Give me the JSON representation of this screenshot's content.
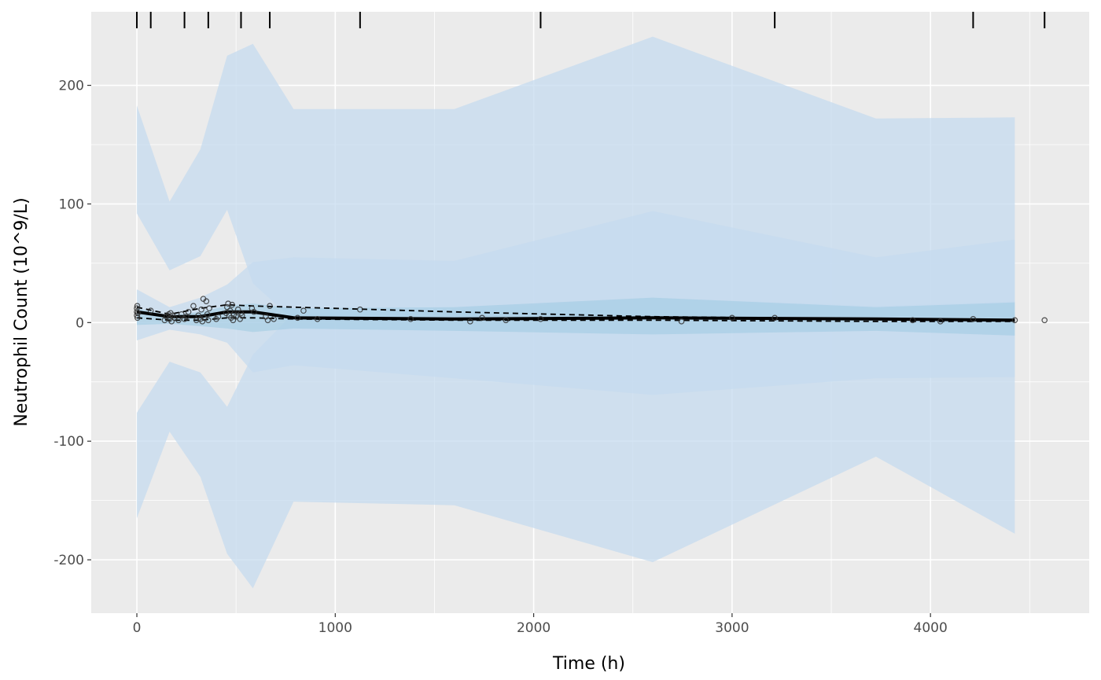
{
  "chart_data": {
    "type": "line",
    "title": "",
    "xlabel": "Time (h)",
    "ylabel": "Neutrophil Count (10^9/L)",
    "xlim": [
      -230,
      4800
    ],
    "ylim": [
      -245,
      262
    ],
    "x_ticks": [
      0,
      1000,
      2000,
      3000,
      4000
    ],
    "x_tick_labels": [
      "0",
      "1000",
      "2000",
      "3000",
      "4000"
    ],
    "y_ticks": [
      -200,
      -100,
      0,
      100,
      200
    ],
    "y_tick_labels": [
      "-200",
      "-100",
      "0",
      "100",
      "200"
    ],
    "grid": true,
    "colors": {
      "panel_background": "#ebebeb",
      "grid": "#ffffff",
      "outer_band": "#c6dbef",
      "inner_band": "#9ecae1",
      "lines": "#000000",
      "points": "#333333"
    },
    "bin_edges_rug": [
      0,
      70,
      240,
      360,
      525,
      670,
      1125,
      2035,
      3215,
      4215,
      4575
    ],
    "bands": [
      {
        "name": "outer_upper",
        "x": [
          0,
          165,
          320,
          455,
          585,
          790,
          1600,
          2600,
          3725,
          4425
        ],
        "lower": [
          92,
          44,
          56,
          95,
          33,
          2,
          2,
          4,
          3,
          3
        ],
        "upper": [
          183,
          102,
          146,
          225,
          235,
          180,
          180,
          241,
          172,
          173
        ]
      },
      {
        "name": "outer_median",
        "x": [
          0,
          165,
          320,
          455,
          585,
          790,
          1600,
          2600,
          3725,
          4425
        ],
        "lower": [
          -15,
          -6,
          -10,
          -17,
          -42,
          -36,
          -47,
          -61,
          -47,
          -46
        ],
        "upper": [
          28,
          13,
          21,
          32,
          51,
          55,
          52,
          94,
          55,
          70
        ]
      },
      {
        "name": "outer_lower",
        "x": [
          0,
          165,
          320,
          455,
          585,
          790,
          1600,
          2600,
          3725,
          4425
        ],
        "lower": [
          -165,
          -92,
          -130,
          -195,
          -224,
          -151,
          -154,
          -202,
          -113,
          -178
        ],
        "upper": [
          -76,
          -33,
          -42,
          -71,
          -27,
          8,
          10,
          21,
          14,
          18
        ]
      },
      {
        "name": "inner_median",
        "x": [
          0,
          165,
          320,
          455,
          585,
          790,
          1600,
          2600,
          3725,
          4425
        ],
        "lower": [
          -2,
          -1,
          -3,
          -5,
          -8,
          -5,
          -7,
          -10,
          -7,
          -11
        ],
        "upper": [
          12,
          6,
          9,
          14,
          16,
          12,
          13,
          21,
          13,
          17
        ]
      }
    ],
    "series": [
      {
        "name": "",
        "style": "solid",
        "x": [
          0,
          165,
          320,
          455,
          585,
          790,
          1600,
          2600,
          3725,
          4425
        ],
        "y": [
          9,
          5,
          5,
          9,
          9,
          4,
          3,
          4,
          3,
          2
        ]
      },
      {
        "name": "",
        "style": "dashed",
        "x": [
          0,
          165,
          320,
          455,
          585,
          790,
          1600,
          2600,
          3725,
          4425
        ],
        "y": [
          13,
          7,
          12,
          15,
          14,
          13,
          9,
          5,
          3,
          2
        ]
      },
      {
        "name": "",
        "style": "dashed",
        "x": [
          0,
          165,
          320,
          455,
          585,
          790,
          1600,
          2600,
          3725,
          4425
        ],
        "y": [
          4,
          2,
          2,
          4,
          4,
          3,
          2,
          2,
          1,
          1
        ]
      },
      {
        "name": "",
        "style": "points",
        "x": [
          0,
          0,
          0,
          2,
          3,
          5,
          70,
          140,
          150,
          160,
          165,
          170,
          175,
          180,
          190,
          210,
          225,
          240,
          250,
          260,
          285,
          300,
          310,
          320,
          325,
          330,
          335,
          340,
          350,
          355,
          360,
          365,
          400,
          410,
          450,
          455,
          460,
          465,
          470,
          475,
          480,
          485,
          490,
          500,
          510,
          520,
          525,
          530,
          580,
          590,
          650,
          660,
          670,
          690,
          810,
          840,
          910,
          1125,
          1380,
          1680,
          1740,
          1860,
          2035,
          2745,
          3000,
          3215,
          3910,
          4050,
          4215,
          4425,
          4575
        ],
        "y": [
          6,
          9,
          12,
          14,
          4,
          8,
          10,
          2,
          5,
          7,
          3,
          8,
          1,
          6,
          4,
          2,
          7,
          3,
          5,
          9,
          14,
          2,
          6,
          3,
          11,
          1,
          20,
          4,
          18,
          7,
          2,
          12,
          3,
          5,
          8,
          13,
          16,
          6,
          10,
          4,
          15,
          2,
          7,
          5,
          11,
          3,
          8,
          6,
          12,
          9,
          5,
          2,
          14,
          3,
          4,
          10,
          3,
          11,
          3,
          1,
          4,
          2,
          3,
          1,
          4,
          4,
          2,
          1,
          3,
          2,
          2
        ]
      }
    ]
  }
}
